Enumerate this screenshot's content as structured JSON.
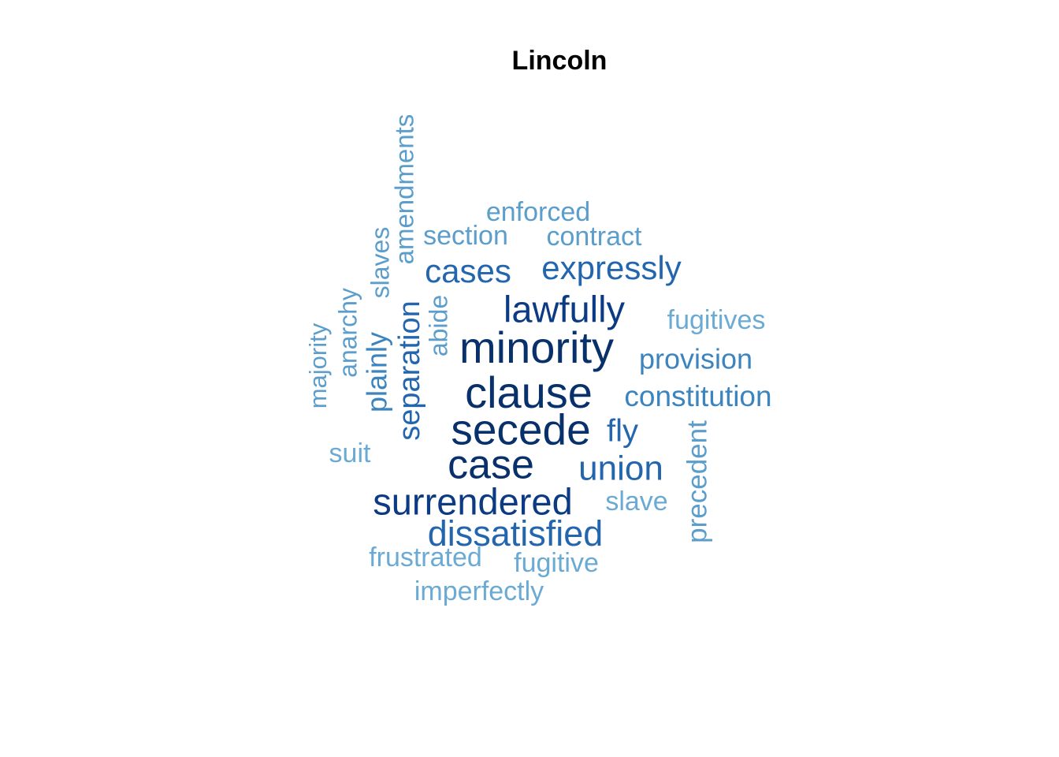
{
  "chart_data": {
    "type": "wordcloud",
    "title": "Lincoln",
    "colors": {
      "darkest": "#08306b",
      "dark": "#0c3b84",
      "medium_dark": "#2366ad",
      "medium": "#3b84bf",
      "light": "#5b9dcb",
      "lightest": "#6aaad3"
    },
    "words": [
      {
        "text": "minority",
        "weight": 10,
        "color": "#08306b",
        "rotated": false
      },
      {
        "text": "clause",
        "weight": 10,
        "color": "#08306b",
        "rotated": false
      },
      {
        "text": "secede",
        "weight": 10,
        "color": "#08306b",
        "rotated": false
      },
      {
        "text": "case",
        "weight": 9,
        "color": "#08306b",
        "rotated": false
      },
      {
        "text": "lawfully",
        "weight": 8,
        "color": "#0c3b84",
        "rotated": false
      },
      {
        "text": "surrendered",
        "weight": 8,
        "color": "#0c3b84",
        "rotated": false
      },
      {
        "text": "dissatisfied",
        "weight": 7,
        "color": "#2366ad",
        "rotated": false
      },
      {
        "text": "union",
        "weight": 7,
        "color": "#2366ad",
        "rotated": false
      },
      {
        "text": "expressly",
        "weight": 6,
        "color": "#2366ad",
        "rotated": false
      },
      {
        "text": "cases",
        "weight": 6,
        "color": "#2366ad",
        "rotated": false
      },
      {
        "text": "separation",
        "weight": 6,
        "color": "#2366ad",
        "rotated": true
      },
      {
        "text": "fly",
        "weight": 6,
        "color": "#2366ad",
        "rotated": false
      },
      {
        "text": "constitution",
        "weight": 5,
        "color": "#3b84bf",
        "rotated": false
      },
      {
        "text": "provision",
        "weight": 5,
        "color": "#3b84bf",
        "rotated": false
      },
      {
        "text": "plainly",
        "weight": 5,
        "color": "#3b84bf",
        "rotated": true
      },
      {
        "text": "anarchy",
        "weight": 4,
        "color": "#5b9dcb",
        "rotated": true
      },
      {
        "text": "amendments",
        "weight": 4,
        "color": "#5b9dcb",
        "rotated": true
      },
      {
        "text": "precedent",
        "weight": 4,
        "color": "#5b9dcb",
        "rotated": true
      },
      {
        "text": "enforced",
        "weight": 4,
        "color": "#5b9dcb",
        "rotated": false
      },
      {
        "text": "contract",
        "weight": 4,
        "color": "#5b9dcb",
        "rotated": false
      },
      {
        "text": "section",
        "weight": 4,
        "color": "#5b9dcb",
        "rotated": false
      },
      {
        "text": "slaves",
        "weight": 4,
        "color": "#5b9dcb",
        "rotated": true
      },
      {
        "text": "abide",
        "weight": 4,
        "color": "#5b9dcb",
        "rotated": true
      },
      {
        "text": "majority",
        "weight": 4,
        "color": "#5b9dcb",
        "rotated": true
      },
      {
        "text": "fugitives",
        "weight": 4,
        "color": "#6aaad3",
        "rotated": false
      },
      {
        "text": "suit",
        "weight": 4,
        "color": "#6aaad3",
        "rotated": false
      },
      {
        "text": "slave",
        "weight": 4,
        "color": "#6aaad3",
        "rotated": false
      },
      {
        "text": "frustrated",
        "weight": 4,
        "color": "#6aaad3",
        "rotated": false
      },
      {
        "text": "fugitive",
        "weight": 4,
        "color": "#6aaad3",
        "rotated": false
      },
      {
        "text": "imperfectly",
        "weight": 4,
        "color": "#6aaad3",
        "rotated": false
      }
    ]
  }
}
